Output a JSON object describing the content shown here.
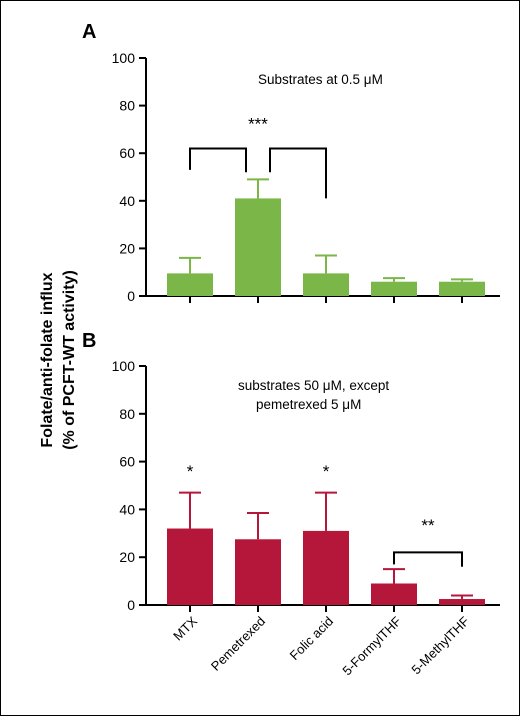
{
  "ylabel_line1": "Folate/anti-folate influx",
  "ylabel_line2": "(% of PCFT-WT activity)",
  "chart_data": [
    {
      "type": "bar",
      "panel": "A",
      "annotation": "Substrates at 0.5 μM",
      "categories": [
        "MTX",
        "Pemetrexed",
        "Folic acid",
        "5-FormylTHF",
        "5-MethylTHF"
      ],
      "values": [
        9.5,
        41,
        9.5,
        6,
        6
      ],
      "errors": [
        6.5,
        8,
        7.5,
        1.5,
        1
      ],
      "ylim": [
        0,
        100
      ],
      "yticks": [
        0,
        20,
        40,
        60,
        80,
        100
      ],
      "bar_color": "#7ab648",
      "significance": [
        {
          "label": "***",
          "from": 0,
          "to": 1
        },
        {
          "label": "",
          "from": 1,
          "to": 2
        }
      ]
    },
    {
      "type": "bar",
      "panel": "B",
      "annotation_line1": "substrates 50 μM, except",
      "annotation_line2": "pemetrexed 5 μM",
      "categories": [
        "MTX",
        "Pemetrexed",
        "Folic acid",
        "5-FormylTHF",
        "5-MethylTHF"
      ],
      "values": [
        32,
        27.5,
        31,
        9,
        2.5
      ],
      "errors": [
        15,
        11,
        16,
        6,
        1.5
      ],
      "ylim": [
        0,
        100
      ],
      "yticks": [
        0,
        20,
        40,
        60,
        80,
        100
      ],
      "bar_color": "#b5173a",
      "stars": [
        "*",
        "",
        "*",
        "",
        ""
      ],
      "significance": [
        {
          "label": "**",
          "from": 3,
          "to": 4
        }
      ]
    }
  ]
}
